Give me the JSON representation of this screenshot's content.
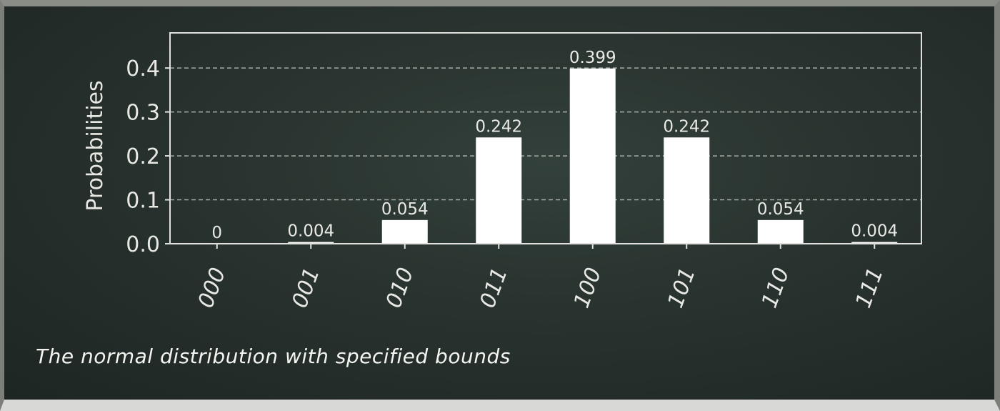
{
  "caption": "The normal distribution with specified bounds",
  "colors": {
    "board": "#28322e",
    "bar": "#ffffff",
    "grid": "#bfc3bd",
    "text": "#e8e8e4"
  },
  "chart_data": {
    "type": "bar",
    "categories": [
      "000",
      "001",
      "010",
      "011",
      "100",
      "101",
      "110",
      "111"
    ],
    "values": [
      0,
      0.004,
      0.054,
      0.242,
      0.399,
      0.242,
      0.054,
      0.004
    ],
    "value_labels": [
      "0",
      "0.004",
      "0.054",
      "0.242",
      "0.399",
      "0.242",
      "0.054",
      "0.004"
    ],
    "ylabel": "Probabilities",
    "xlabel": "",
    "yticks": [
      "0.0",
      "0.1",
      "0.2",
      "0.3",
      "0.4"
    ],
    "ylim": [
      0,
      0.48
    ],
    "grid": "horizontal dashed",
    "tick_label_rotation": 70
  }
}
